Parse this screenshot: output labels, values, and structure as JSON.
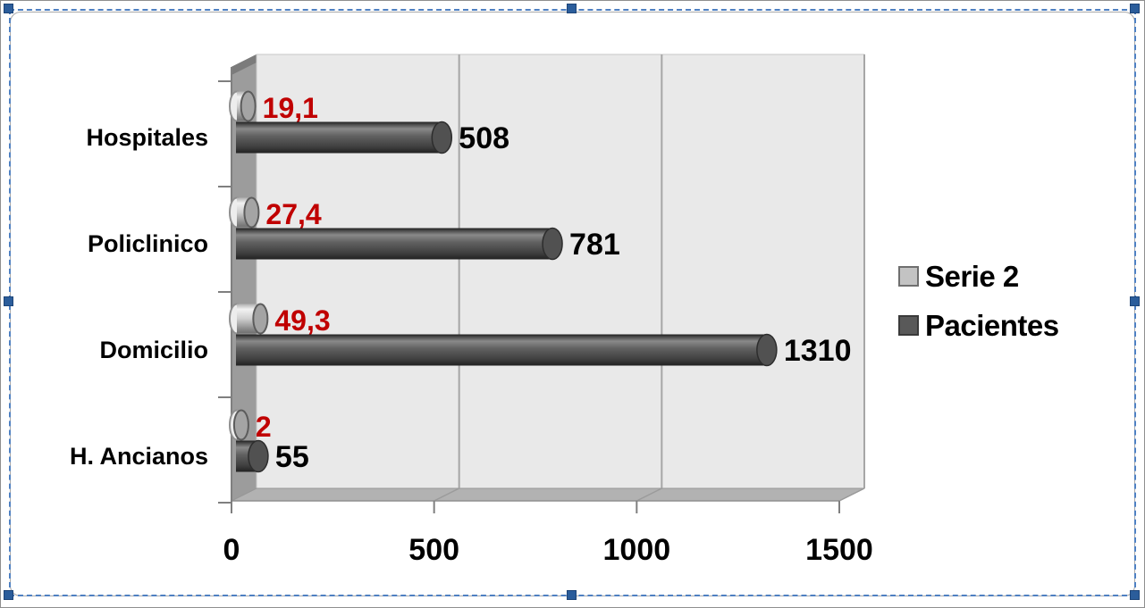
{
  "window": {
    "background": "#ffffff",
    "outer_border_color": "#8f8f8f"
  },
  "selection": {
    "dash_color": "#4e80c2",
    "handle_color": "#2b5d9b",
    "handles": [
      "nw",
      "n",
      "ne",
      "w",
      "e",
      "sw",
      "s",
      "se"
    ]
  },
  "chart_frame": {
    "background": "#ffffff",
    "border_color": "#a8a8a8"
  },
  "chart_data": {
    "type": "bar",
    "orientation": "horizontal",
    "style": "3d-cylinder",
    "title": "",
    "categories": [
      "Hospitales",
      "Policlinico",
      "Domicilio",
      "H. Ancianos"
    ],
    "series": [
      {
        "name": "Serie 2",
        "values": [
          19.1,
          27.4,
          49.3,
          2
        ],
        "data_labels": [
          "19,1",
          "27,4",
          "49,3",
          "2"
        ],
        "color": "#c3c3c3",
        "label_color": "#c00000"
      },
      {
        "name": "Pacientes",
        "values": [
          508,
          781,
          1310,
          55
        ],
        "data_labels": [
          "508",
          "781",
          "1310",
          "55"
        ],
        "color": "#595959",
        "label_color": "#000000"
      }
    ],
    "x_axis": {
      "min": 0,
      "max": 1500,
      "tick_values": [
        0,
        500,
        1000,
        1500
      ],
      "tick_labels": [
        "0",
        "500",
        "1000",
        "1500"
      ]
    },
    "plot": {
      "background": "#e9e9e9",
      "gridline_color": "#a6a6a6",
      "wall_color": "#9c9c9c",
      "wall_top_color": "#7b7b7b",
      "floor_color": "#b2b2b2",
      "axis_color": "#7f7f7f",
      "grid": true
    },
    "legend_position": "right"
  }
}
